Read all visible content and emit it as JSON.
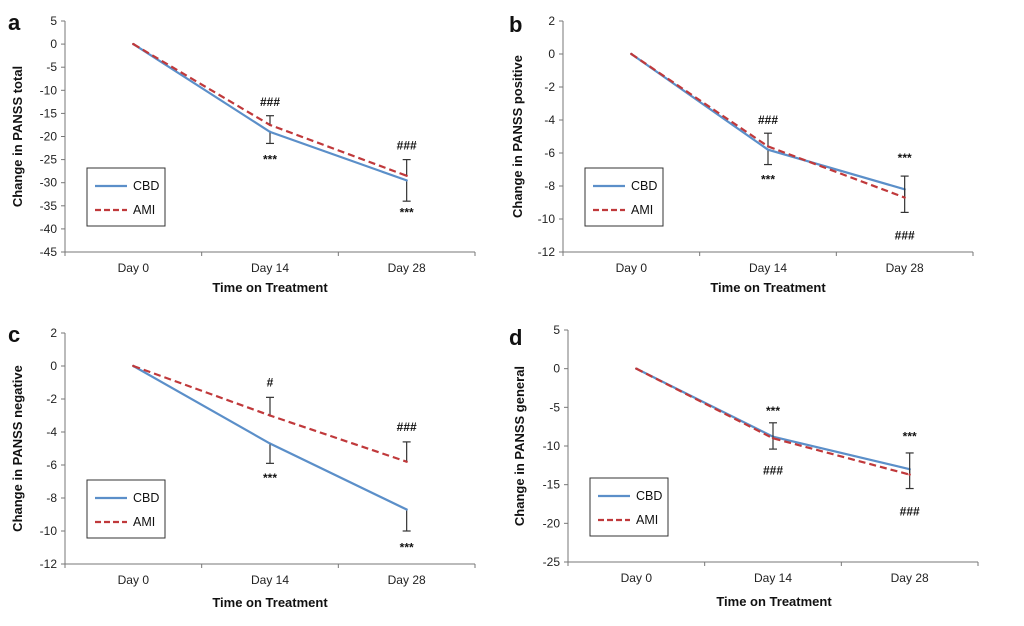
{
  "colors": {
    "cbd": "#5b8fc9",
    "ami": "#c0393b",
    "axis": "#777777",
    "text": "#111111"
  },
  "chart_data": [
    {
      "panel": "a",
      "type": "line",
      "categories": [
        "Day 0",
        "Day 14",
        "Day 28"
      ],
      "xlabel": "Time on Treatment",
      "ylabel": "Change in PANSS total",
      "ylim": [
        -45,
        5
      ],
      "yticks": [
        5,
        0,
        -5,
        -10,
        -15,
        -20,
        -25,
        -30,
        -35,
        -40,
        -45
      ],
      "legend": "bottom-left",
      "series": [
        {
          "name": "CBD",
          "values": [
            0,
            -19,
            -29.5
          ],
          "err": [
            null,
            2.5,
            4.5
          ],
          "style": "solid"
        },
        {
          "name": "AMI",
          "values": [
            0,
            -17.5,
            -28.5
          ],
          "err": [
            null,
            2,
            3.5
          ],
          "style": "dashed"
        }
      ],
      "annotations": [
        {
          "text": "###",
          "category": "Day 14",
          "y": -12.5
        },
        {
          "text": "***",
          "category": "Day 14",
          "y": -25
        },
        {
          "text": "###",
          "category": "Day 28",
          "y": -22
        },
        {
          "text": "***",
          "category": "Day 28",
          "y": -36.5
        }
      ]
    },
    {
      "panel": "b",
      "type": "line",
      "categories": [
        "Day 0",
        "Day 14",
        "Day 28"
      ],
      "xlabel": "Time on Treatment",
      "ylabel": "Change in PANSS positive",
      "ylim": [
        -12,
        2
      ],
      "yticks": [
        2,
        0,
        -2,
        -4,
        -6,
        -8,
        -10,
        -12
      ],
      "legend": "bottom-left",
      "series": [
        {
          "name": "CBD",
          "values": [
            0,
            -5.8,
            -8.2
          ],
          "err": [
            null,
            0.9,
            1.4
          ],
          "style": "solid"
        },
        {
          "name": "AMI",
          "values": [
            0,
            -5.6,
            -8.7
          ],
          "err": [
            null,
            0.8,
            1.3
          ],
          "style": "dashed"
        }
      ],
      "annotations": [
        {
          "text": "###",
          "category": "Day 14",
          "y": -4
        },
        {
          "text": "***",
          "category": "Day 14",
          "y": -7.6
        },
        {
          "text": "***",
          "category": "Day 28",
          "y": -6.3
        },
        {
          "text": "###",
          "category": "Day 28",
          "y": -11
        }
      ]
    },
    {
      "panel": "c",
      "type": "line",
      "categories": [
        "Day 0",
        "Day 14",
        "Day 28"
      ],
      "xlabel": "Time on Treatment",
      "ylabel": "Change in PANSS negative",
      "ylim": [
        -12,
        2
      ],
      "yticks": [
        2,
        0,
        -2,
        -4,
        -6,
        -8,
        -10,
        -12
      ],
      "legend": "bottom-left",
      "series": [
        {
          "name": "CBD",
          "values": [
            0,
            -4.7,
            -8.7
          ],
          "err": [
            null,
            1.2,
            1.3
          ],
          "style": "solid"
        },
        {
          "name": "AMI",
          "values": [
            0,
            -3,
            -5.8
          ],
          "err": [
            null,
            1.1,
            1.2
          ],
          "style": "dashed"
        }
      ],
      "annotations": [
        {
          "text": "#",
          "category": "Day 14",
          "y": -1
        },
        {
          "text": "***",
          "category": "Day 14",
          "y": -6.8
        },
        {
          "text": "###",
          "category": "Day 28",
          "y": -3.7
        },
        {
          "text": "***",
          "category": "Day 28",
          "y": -11
        }
      ]
    },
    {
      "panel": "d",
      "type": "line",
      "categories": [
        "Day 0",
        "Day 14",
        "Day 28"
      ],
      "xlabel": "Time on Treatment",
      "ylabel": "Change in PANSS general",
      "ylim": [
        -25,
        5
      ],
      "yticks": [
        5,
        0,
        -5,
        -10,
        -15,
        -20,
        -25
      ],
      "legend": "bottom-left",
      "series": [
        {
          "name": "CBD",
          "values": [
            0,
            -8.8,
            -13
          ],
          "err": [
            null,
            1.6,
            2.5
          ],
          "style": "solid"
        },
        {
          "name": "AMI",
          "values": [
            0,
            -9,
            -13.7
          ],
          "err": [
            null,
            2,
            2.8
          ],
          "style": "dashed"
        }
      ],
      "annotations": [
        {
          "text": "***",
          "category": "Day 14",
          "y": -5.5
        },
        {
          "text": "###",
          "category": "Day 14",
          "y": -13.2
        },
        {
          "text": "***",
          "category": "Day 28",
          "y": -8.8
        },
        {
          "text": "###",
          "category": "Day 28",
          "y": -18.5
        }
      ]
    }
  ]
}
